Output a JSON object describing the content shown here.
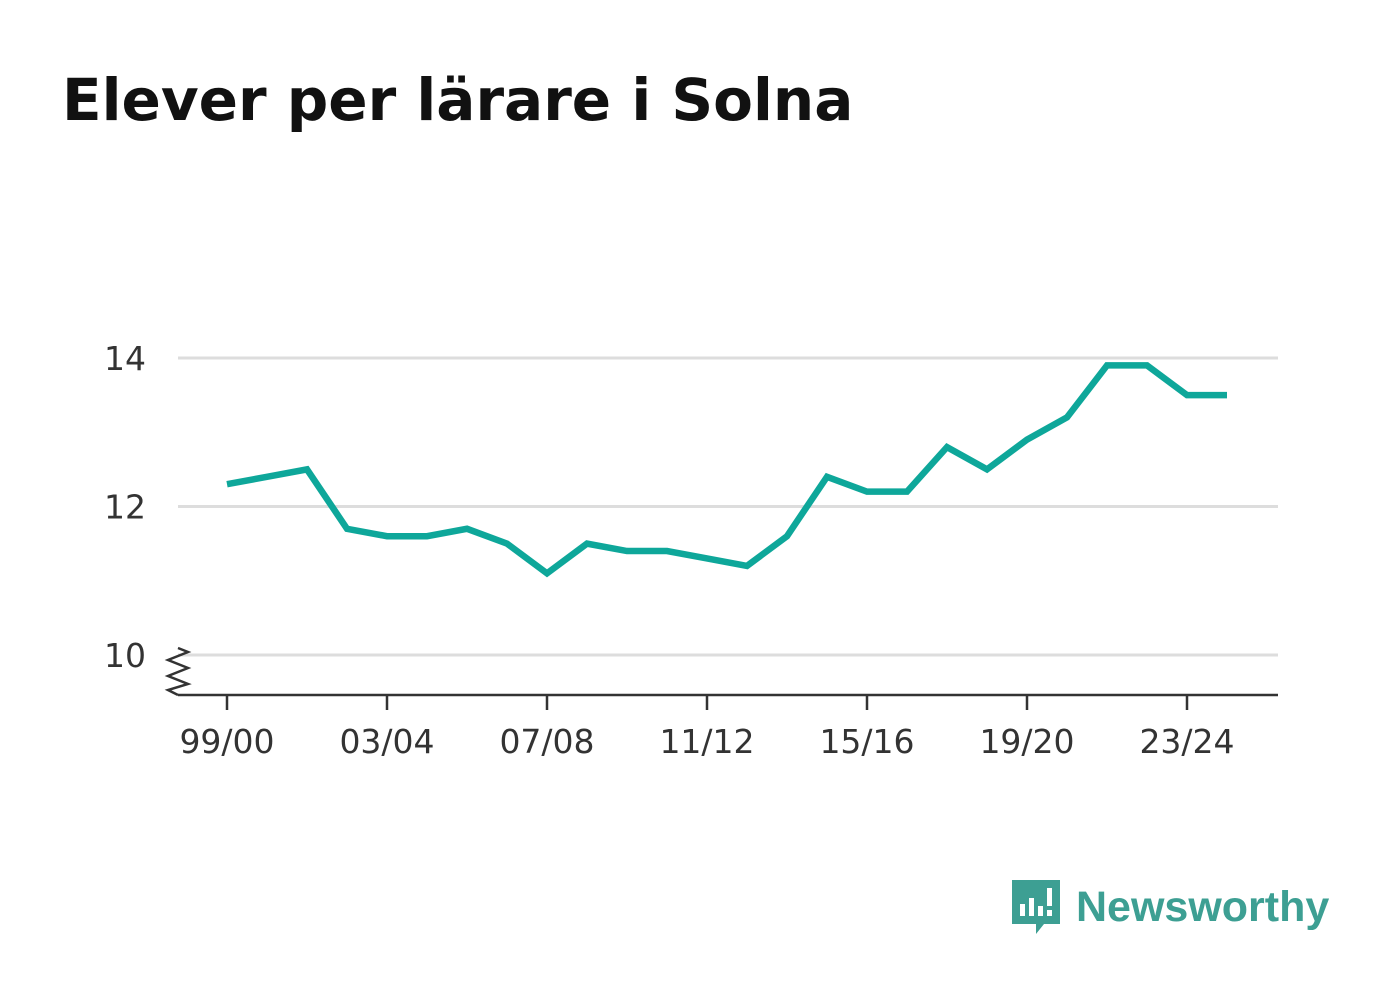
{
  "title": "Elever per lärare i Solna",
  "brand": {
    "name": "Newsworthy",
    "icon": "newsworthy-logo-icon",
    "color": "#3d9f93"
  },
  "chart_data": {
    "type": "line",
    "title": "Elever per lärare i Solna",
    "xlabel": "",
    "ylabel": "",
    "x": [
      "99/00",
      "00/01",
      "01/02",
      "02/03",
      "03/04",
      "04/05",
      "05/06",
      "06/07",
      "07/08",
      "08/09",
      "09/10",
      "10/11",
      "11/12",
      "12/13",
      "13/14",
      "14/15",
      "15/16",
      "16/17",
      "17/18",
      "18/19",
      "19/20",
      "20/21",
      "21/22",
      "22/23",
      "23/24",
      "24/25"
    ],
    "x_tick_labels": [
      "99/00",
      "03/04",
      "07/08",
      "11/12",
      "15/16",
      "19/20",
      "23/24"
    ],
    "series": [
      {
        "values": [
          12.3,
          12.4,
          12.5,
          11.7,
          11.6,
          11.6,
          11.7,
          11.5,
          11.1,
          11.5,
          11.4,
          11.4,
          11.3,
          11.2,
          11.6,
          12.4,
          12.2,
          12.2,
          12.8,
          12.5,
          12.9,
          13.2,
          13.9,
          13.9,
          13.5,
          13.5
        ],
        "color": "#0ea79a"
      }
    ],
    "y_ticks": [
      10,
      12,
      14
    ],
    "y_tick_labels": [
      "10",
      "12",
      "14"
    ],
    "ylim": [
      10,
      14
    ],
    "y_axis_break": true,
    "grid": true,
    "legend": "none",
    "colors": {
      "line": "#0ea79a",
      "grid": "#dddddd",
      "axis": "#333333",
      "text": "#333333"
    }
  }
}
